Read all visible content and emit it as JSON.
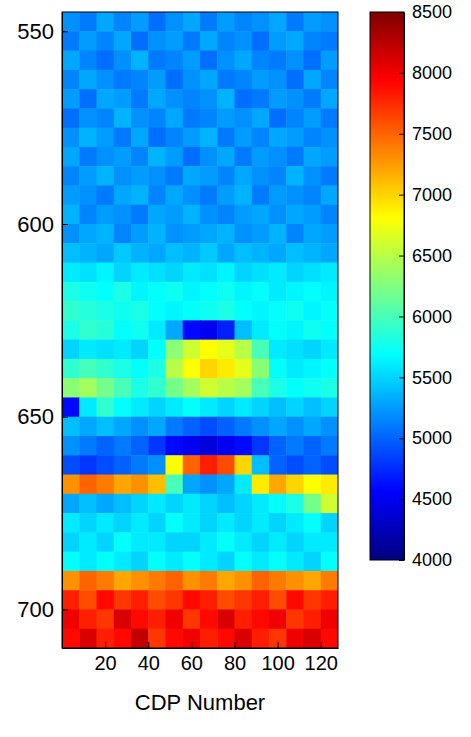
{
  "chart_data": {
    "type": "heatmap",
    "xlabel": "CDP Number",
    "xlim": [
      0,
      128
    ],
    "xticks": [
      20,
      40,
      60,
      80,
      100,
      120
    ],
    "ylim": [
      545,
      710
    ],
    "yticks": [
      550,
      600,
      650,
      700
    ],
    "x_bins": [
      0,
      8,
      16,
      24,
      32,
      40,
      48,
      56,
      64,
      72,
      80,
      88,
      96,
      104,
      112,
      120,
      128
    ],
    "y_bins": [
      545,
      550,
      555,
      560,
      565,
      570,
      575,
      580,
      585,
      590,
      595,
      600,
      605,
      610,
      615,
      620,
      625,
      630,
      635,
      640,
      645,
      650,
      655,
      660,
      665,
      670,
      675,
      680,
      685,
      690,
      695,
      700,
      705,
      710
    ],
    "values": [
      [
        5200,
        5100,
        5300,
        5150,
        5250,
        5050,
        5200,
        5300,
        5100,
        5250,
        5150,
        5200,
        5300,
        5100,
        5250,
        5200
      ],
      [
        5100,
        5250,
        5150,
        5300,
        5050,
        5200,
        5250,
        5100,
        5300,
        5150,
        5200,
        5050,
        5250,
        5300,
        5150,
        5100
      ],
      [
        5300,
        5150,
        5050,
        5200,
        5350,
        5100,
        5150,
        5250,
        5050,
        5200,
        5300,
        5150,
        5100,
        5200,
        5050,
        5250
      ],
      [
        5150,
        5300,
        5200,
        5100,
        5150,
        5250,
        5050,
        5200,
        5300,
        5100,
        5150,
        5250,
        5200,
        5050,
        5300,
        5150
      ],
      [
        5250,
        5050,
        5300,
        5250,
        5100,
        5300,
        5200,
        5150,
        5200,
        5350,
        5050,
        5100,
        5250,
        5200,
        5100,
        5300
      ],
      [
        5050,
        5200,
        5150,
        5350,
        5200,
        5150,
        5300,
        5100,
        5150,
        5250,
        5200,
        5300,
        5050,
        5150,
        5250,
        5100
      ],
      [
        5200,
        5350,
        5250,
        5100,
        5300,
        5050,
        5150,
        5250,
        5350,
        5100,
        5250,
        5150,
        5300,
        5250,
        5150,
        5200
      ],
      [
        5300,
        5100,
        5200,
        5250,
        5150,
        5350,
        5250,
        5050,
        5200,
        5300,
        5100,
        5250,
        5200,
        5100,
        5300,
        5250
      ],
      [
        5150,
        5250,
        5350,
        5200,
        5250,
        5200,
        5100,
        5300,
        5250,
        5150,
        5300,
        5200,
        5150,
        5350,
        5200,
        5100
      ],
      [
        5250,
        5200,
        5100,
        5300,
        5350,
        5150,
        5300,
        5200,
        5100,
        5250,
        5350,
        5100,
        5250,
        5200,
        5150,
        5300
      ],
      [
        5350,
        5150,
        5250,
        5200,
        5100,
        5300,
        5250,
        5350,
        5200,
        5150,
        5250,
        5300,
        5200,
        5300,
        5250,
        5150
      ],
      [
        5200,
        5300,
        5350,
        5150,
        5250,
        5350,
        5200,
        5250,
        5300,
        5350,
        5200,
        5250,
        5350,
        5150,
        5300,
        5250
      ],
      [
        5400,
        5350,
        5300,
        5450,
        5350,
        5300,
        5400,
        5350,
        5450,
        5300,
        5400,
        5350,
        5300,
        5400,
        5350,
        5300
      ],
      [
        5600,
        5550,
        5650,
        5500,
        5600,
        5550,
        5500,
        5600,
        5550,
        5650,
        5500,
        5550,
        5600,
        5500,
        5550,
        5600
      ],
      [
        5800,
        5750,
        5700,
        5800,
        5650,
        5700,
        5750,
        5650,
        5700,
        5750,
        5650,
        5700,
        5600,
        5650,
        5700,
        5650
      ],
      [
        5900,
        5850,
        5800,
        5750,
        5800,
        5700,
        5650,
        5700,
        5750,
        5800,
        5700,
        5650,
        5700,
        5750,
        5650,
        5700
      ],
      [
        5800,
        5900,
        5850,
        5700,
        5750,
        5600,
        5300,
        4600,
        4500,
        4700,
        5400,
        5600,
        5700,
        5650,
        5750,
        5700
      ],
      [
        5500,
        5600,
        5550,
        5600,
        5500,
        5700,
        6300,
        6600,
        6800,
        6700,
        6500,
        6000,
        5600,
        5550,
        5500,
        5600
      ],
      [
        5900,
        6000,
        5900,
        5800,
        5700,
        5800,
        6500,
        6800,
        7000,
        6900,
        6700,
        6300,
        5700,
        5600,
        5650,
        5700
      ],
      [
        6300,
        6400,
        6200,
        6000,
        5800,
        5900,
        6200,
        6400,
        6600,
        6500,
        6400,
        6000,
        5800,
        5700,
        5750,
        5800
      ],
      [
        4600,
        5600,
        5900,
        5700,
        5600,
        5500,
        5600,
        5700,
        5600,
        5500,
        5600,
        5500,
        5400,
        5500,
        5400,
        5500
      ],
      [
        5400,
        5300,
        5400,
        5300,
        5200,
        5300,
        5100,
        5000,
        4900,
        5000,
        5100,
        5200,
        5300,
        5200,
        5300,
        5200
      ],
      [
        5200,
        5100,
        5000,
        5100,
        5000,
        4800,
        4600,
        4500,
        4400,
        4500,
        4600,
        4800,
        5000,
        5100,
        5000,
        5100
      ],
      [
        4900,
        4800,
        4900,
        5000,
        5100,
        5200,
        6800,
        7500,
        7800,
        7600,
        7000,
        5400,
        5000,
        4900,
        5000,
        4900
      ],
      [
        7300,
        7500,
        7400,
        7200,
        7300,
        7100,
        6000,
        5300,
        5200,
        5300,
        5600,
        6900,
        7200,
        7000,
        6800,
        6900
      ],
      [
        5300,
        5400,
        5300,
        5400,
        5500,
        5600,
        5500,
        5600,
        5500,
        5400,
        5500,
        5600,
        5700,
        5800,
        6200,
        6600
      ],
      [
        5600,
        5500,
        5600,
        5500,
        5600,
        5500,
        5700,
        5600,
        5500,
        5600,
        5500,
        5600,
        5500,
        5600,
        5700,
        5500
      ],
      [
        5500,
        5600,
        5500,
        5700,
        5600,
        5600,
        5500,
        5500,
        5600,
        5700,
        5600,
        5500,
        5600,
        5500,
        5600,
        5600
      ],
      [
        5700,
        5600,
        5700,
        5600,
        5500,
        5700,
        5600,
        5700,
        5600,
        5500,
        5700,
        5600,
        5700,
        5600,
        5500,
        5700
      ],
      [
        7300,
        7500,
        7400,
        7200,
        7300,
        7400,
        7500,
        7300,
        7400,
        7200,
        7300,
        7500,
        7400,
        7300,
        7200,
        7400
      ],
      [
        7800,
        7600,
        7900,
        7700,
        7800,
        7600,
        7700,
        7900,
        7800,
        7600,
        7700,
        7800,
        7600,
        7900,
        7700,
        7800
      ],
      [
        8000,
        7800,
        7700,
        8100,
        7900,
        7800,
        8000,
        7700,
        7900,
        8100,
        7800,
        7900,
        8000,
        7700,
        7800,
        8000
      ],
      [
        7900,
        8100,
        7800,
        7900,
        8200,
        7700,
        7900,
        8000,
        7800,
        7900,
        8100,
        7800,
        7700,
        8000,
        8100,
        7900
      ]
    ],
    "colorbar": {
      "lim": [
        4000,
        8500
      ],
      "ticks": [
        4000,
        4500,
        5000,
        5500,
        6000,
        6500,
        7000,
        7500,
        8000,
        8500
      ]
    }
  }
}
